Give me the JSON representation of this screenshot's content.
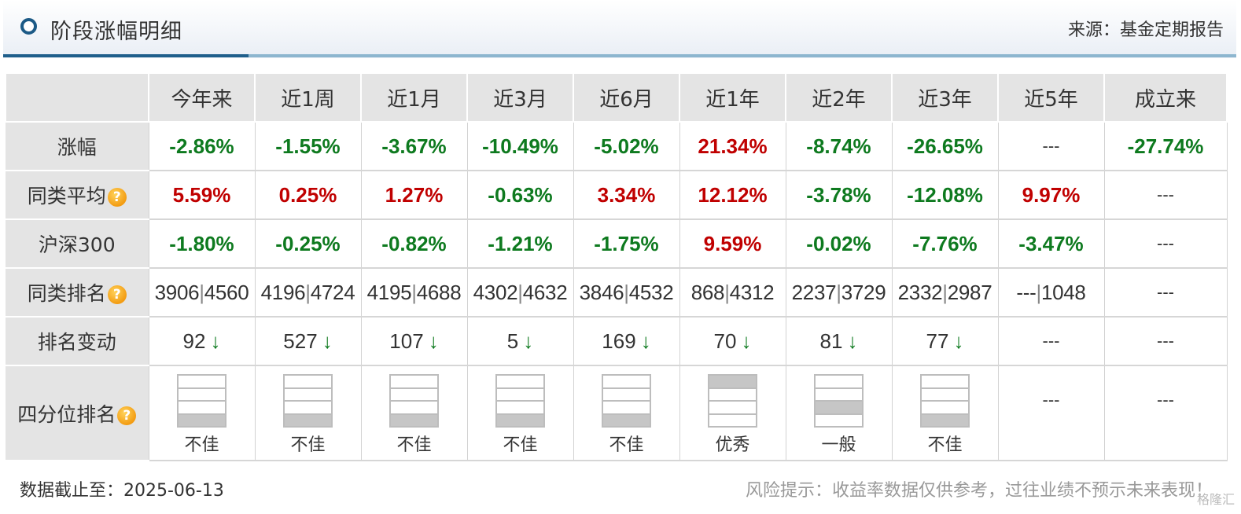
{
  "header": {
    "title": "阶段涨幅明细",
    "source": "来源：基金定期报告"
  },
  "columns": [
    "今年来",
    "近1周",
    "近1月",
    "近3月",
    "近6月",
    "近1年",
    "近2年",
    "近3年",
    "近5年",
    "成立来"
  ],
  "rows": {
    "gain": {
      "label": "涨幅",
      "values": [
        "-2.86%",
        "-1.55%",
        "-3.67%",
        "-10.49%",
        "-5.02%",
        "21.34%",
        "-8.74%",
        "-26.65%",
        "---",
        "-27.74%"
      ],
      "dirs": [
        "down",
        "down",
        "down",
        "down",
        "down",
        "up",
        "down",
        "down",
        "none",
        "down"
      ]
    },
    "peer_avg": {
      "label": "同类平均",
      "values": [
        "5.59%",
        "0.25%",
        "1.27%",
        "-0.63%",
        "3.34%",
        "12.12%",
        "-3.78%",
        "-12.08%",
        "9.97%",
        "---"
      ],
      "dirs": [
        "up",
        "up",
        "up",
        "down",
        "up",
        "up",
        "down",
        "down",
        "up",
        "none"
      ]
    },
    "hs300": {
      "label": "沪深300",
      "values": [
        "-1.80%",
        "-0.25%",
        "-0.82%",
        "-1.21%",
        "-1.75%",
        "9.59%",
        "-0.02%",
        "-7.76%",
        "-3.47%",
        "---"
      ],
      "dirs": [
        "down",
        "down",
        "down",
        "down",
        "down",
        "up",
        "down",
        "down",
        "down",
        "none"
      ]
    },
    "peer_rank": {
      "label": "同类排名",
      "values": [
        [
          "3906",
          "4560"
        ],
        [
          "4196",
          "4724"
        ],
        [
          "4195",
          "4688"
        ],
        [
          "4302",
          "4632"
        ],
        [
          "3846",
          "4532"
        ],
        [
          "868",
          "4312"
        ],
        [
          "2237",
          "3729"
        ],
        [
          "2332",
          "2987"
        ],
        [
          "---",
          "1048"
        ],
        "---"
      ]
    },
    "rank_change": {
      "label": "排名变动",
      "values": [
        "92",
        "527",
        "107",
        "5",
        "169",
        "70",
        "81",
        "77",
        "---",
        "---"
      ],
      "arrows": [
        "down",
        "down",
        "down",
        "down",
        "down",
        "down",
        "down",
        "down",
        "none",
        "none"
      ]
    },
    "quartile": {
      "label": "四分位排名",
      "filled_quartile": [
        4,
        4,
        4,
        4,
        4,
        1,
        3,
        4,
        0,
        0
      ],
      "labels": [
        "不佳",
        "不佳",
        "不佳",
        "不佳",
        "不佳",
        "优秀",
        "一般",
        "不佳",
        "---",
        "---"
      ]
    }
  },
  "footer": {
    "cutoff": "数据截止至：2025-06-13",
    "risk": "风险提示：收益率数据仅供参考，过往业绩不预示未来表现！",
    "watermark": "格隆汇"
  },
  "icons": {
    "title": "circle-bullet-icon",
    "help": "question-mark-icon",
    "rank_down": "arrow-down-icon"
  },
  "colors": {
    "up": "#c00000",
    "down": "#0e7a1f",
    "header_accent": "#1f5f8b",
    "label_bg": "#e4e4e4"
  }
}
